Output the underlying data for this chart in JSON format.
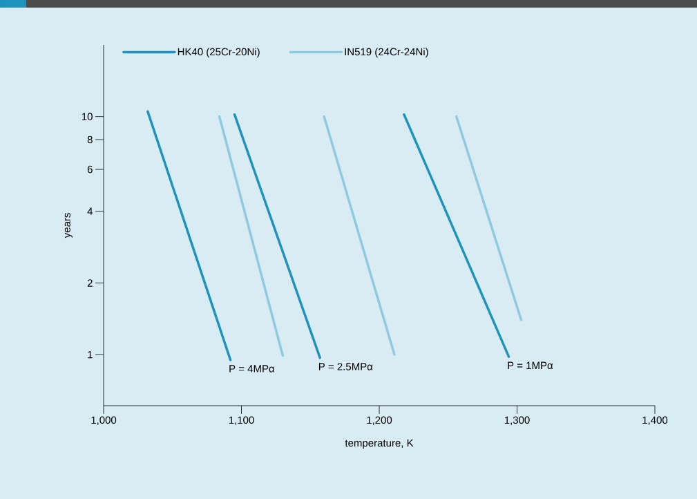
{
  "chart_data": {
    "type": "line",
    "xlabel": "temperature, K",
    "ylabel": "years",
    "log": "y",
    "xlim": [
      1000,
      1400
    ],
    "ylim": [
      0.61,
      20
    ],
    "xticks": [
      {
        "value": 1000,
        "label": "1,000"
      },
      {
        "value": 1100,
        "label": "1,100"
      },
      {
        "value": 1200,
        "label": "1,200"
      },
      {
        "value": 1300,
        "label": "1,300"
      },
      {
        "value": 1400,
        "label": "1,400"
      }
    ],
    "yticks": [
      1,
      2,
      4,
      6,
      8,
      10
    ],
    "legend": "top left",
    "grid": false,
    "marker": "none",
    "line_style": "solid",
    "series": [
      {
        "name": "HK40 (25Cr-20Ni)",
        "color": "#1f93bb",
        "x": [
          1032,
          1092
        ],
        "values": [
          10.5,
          0.95
        ]
      },
      {
        "name": "IN519 (24Cr-24Ni)",
        "color": "#8ecae0",
        "x": [
          1084,
          1130
        ],
        "values": [
          10,
          0.99
        ]
      },
      {
        "color": "#1f93bb",
        "x": [
          1095,
          1157
        ],
        "values": [
          10.2,
          0.97
        ]
      },
      {
        "color": "#8ecae0",
        "x": [
          1160,
          1211
        ],
        "values": [
          10,
          1.0
        ]
      },
      {
        "color": "#1f93bb",
        "x": [
          1218,
          1294
        ],
        "values": [
          10.2,
          0.98
        ]
      },
      {
        "color": "#8ecae0",
        "x": [
          1256,
          1303
        ],
        "values": [
          10,
          1.4
        ]
      }
    ],
    "annotations": [
      "P = 4MPα",
      "P = 2.5MPα",
      "P = 1MPα"
    ]
  }
}
